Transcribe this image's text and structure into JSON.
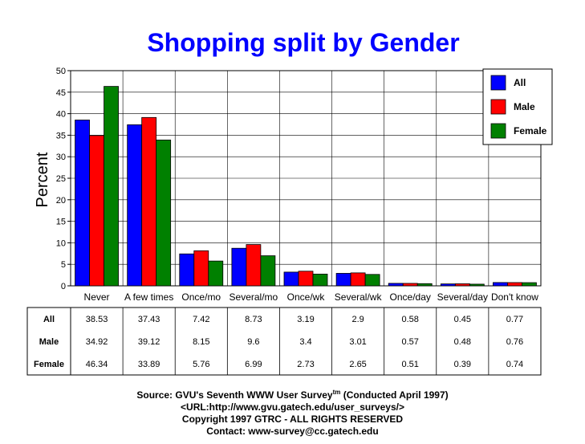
{
  "chart_data": {
    "type": "bar",
    "title": "Shopping split by Gender",
    "ylabel": "Percent",
    "xlabel": "",
    "ylim": [
      0,
      50
    ],
    "yticks": [
      0,
      5,
      10,
      15,
      20,
      25,
      30,
      35,
      40,
      45,
      50
    ],
    "grid": true,
    "legend_position": "top-right",
    "categories": [
      "Never",
      "A few times",
      "Once/mo",
      "Several/mo",
      "Once/wk",
      "Several/wk",
      "Once/day",
      "Several/day",
      "Don't know"
    ],
    "series": [
      {
        "name": "All",
        "color": "#0000ff",
        "values": [
          38.53,
          37.43,
          7.42,
          8.73,
          3.19,
          2.9,
          0.58,
          0.45,
          0.77
        ]
      },
      {
        "name": "Male",
        "color": "#ff0000",
        "values": [
          34.92,
          39.12,
          8.15,
          9.6,
          3.4,
          3.01,
          0.57,
          0.48,
          0.76
        ]
      },
      {
        "name": "Female",
        "color": "#008000",
        "values": [
          46.34,
          33.89,
          5.76,
          6.99,
          2.73,
          2.65,
          0.51,
          0.39,
          0.74
        ]
      }
    ]
  },
  "footer": {
    "source_prefix": "Source: GVU's Seventh WWW User Survey",
    "source_tm": "tm",
    "source_suffix": " (Conducted April 1997)",
    "url": "<URL:http://www.gvu.gatech.edu/user_surveys/>",
    "copyright": "Copyright 1997 GTRC - ALL RIGHTS RESERVED",
    "contact": "Contact: www-survey@cc.gatech.edu"
  }
}
